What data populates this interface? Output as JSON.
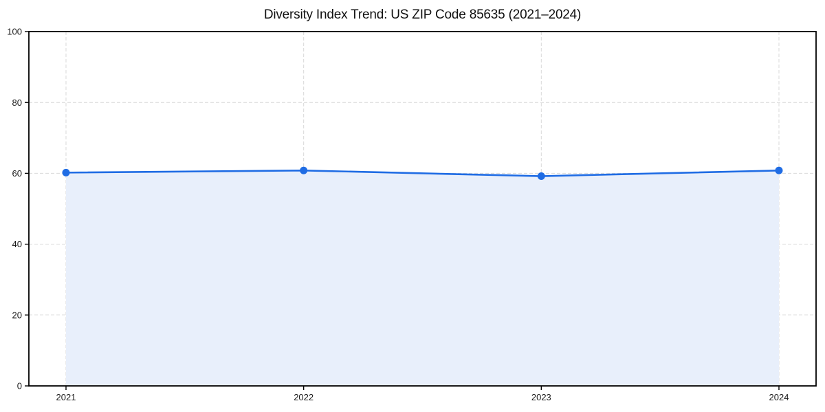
{
  "figure": {
    "background": "#ffffff"
  },
  "chart_data": {
    "type": "line",
    "title": "Diversity Index Trend: US ZIP Code 85635 (2021–2024)",
    "x": [
      2021,
      2022,
      2023,
      2024
    ],
    "xtick_labels": [
      "2021",
      "2022",
      "2023",
      "2024"
    ],
    "series": [
      {
        "name": "Diversity Index",
        "values": [
          60.2,
          60.8,
          59.2,
          60.8
        ]
      }
    ],
    "xlabel": "",
    "ylabel": "",
    "ylim": [
      0,
      100
    ],
    "yticks": [
      0,
      20,
      40,
      60,
      80,
      100
    ],
    "grid": "dashed, both axes",
    "legend": "none",
    "area_fill": true,
    "marker": "circle",
    "colors": {
      "line": "#1f6ce4",
      "marker": "#1f6ce4",
      "area_fill": "#e8effb",
      "grid": "#d9d9d9",
      "axis": "#000000",
      "tick_label": "#1a1a1a",
      "title": "#111111",
      "background": "#ffffff"
    }
  }
}
